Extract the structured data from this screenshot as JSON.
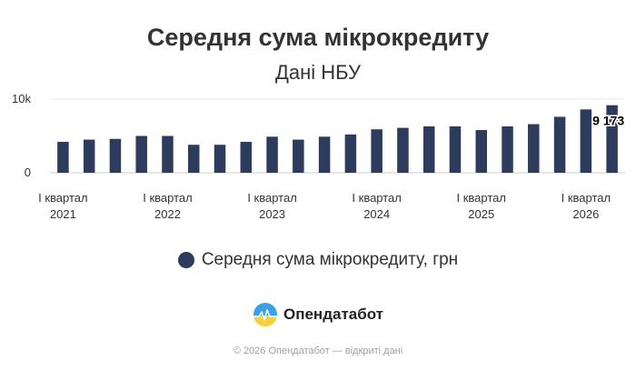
{
  "chart_data": {
    "type": "bar",
    "title": "Середня сума мікрокредиту",
    "subtitle": "Дані НБУ",
    "x_tick_labels": [
      [
        "І квартал",
        "2021"
      ],
      [
        "І квартал",
        "2022"
      ],
      [
        "І квартал",
        "2023"
      ],
      [
        "І квартал",
        "2024"
      ],
      [
        "І квартал",
        "2025"
      ],
      [
        "І квартал",
        "2026"
      ]
    ],
    "tick_category_index": [
      0,
      4,
      8,
      12,
      16,
      20
    ],
    "y_ticks": [
      0,
      10000
    ],
    "y_tick_labels": [
      "0",
      "10k"
    ],
    "ylim": [
      0,
      10000
    ],
    "grid": true,
    "legend_position": "bottom",
    "series": [
      {
        "name": "Середня сума мікрокредиту, грн",
        "color": "#2d3b5c",
        "values": [
          4200,
          4500,
          4600,
          5000,
          5000,
          3800,
          3800,
          4200,
          4900,
          4500,
          4900,
          5200,
          5900,
          6100,
          6300,
          6300,
          5800,
          6300,
          6600,
          7600,
          8600,
          9173
        ]
      }
    ],
    "data_labels": [
      {
        "index": 21,
        "text": "9 173"
      }
    ]
  },
  "legend": {
    "label": "Середня сума мікрокредиту, грн",
    "marker_color": "#2d3b5c"
  },
  "brand": {
    "name": "Опендатабот",
    "logo_icon": "opendatabot-logo-icon"
  },
  "footer": {
    "text": "© 2026 Опендатабот — відкриті дані"
  }
}
